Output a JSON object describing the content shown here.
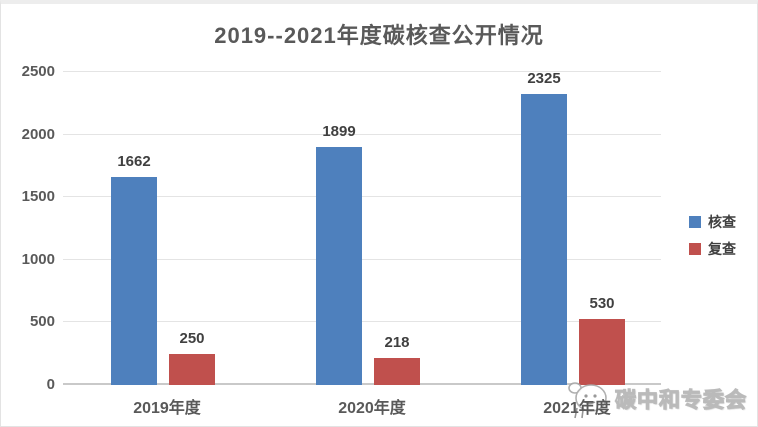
{
  "title": "2019--2021年度碳核查公开情况",
  "chart_data": {
    "type": "bar",
    "title": "2019--2021年度碳核查公开情况",
    "categories": [
      "2019年度",
      "2020年度",
      "2021年度"
    ],
    "series": [
      {
        "name": "核查",
        "color": "#4E80BD",
        "values": [
          1662,
          1899,
          2325
        ]
      },
      {
        "name": "复查",
        "color": "#C0504D",
        "values": [
          250,
          218,
          530
        ]
      }
    ],
    "xlabel": "",
    "ylabel": "",
    "ylim": [
      0,
      2500
    ],
    "yticks": [
      0,
      500,
      1000,
      1500,
      2000,
      2500
    ],
    "grid": "horizontal",
    "legend_position": "right",
    "data_labels": true
  },
  "legend": {
    "items": [
      {
        "label": "核查",
        "color": "#4E80BD"
      },
      {
        "label": "复查",
        "color": "#C0504D"
      }
    ]
  },
  "watermark": {
    "text": "碳中和专委会",
    "icon": "mascot-logo-icon"
  },
  "colors": {
    "series_verification": "#4E80BD",
    "series_review": "#C0504D",
    "title_text": "#595959",
    "label_text": "#404040",
    "gridline": "#e4e4e4",
    "axis_line": "#c9c9c9",
    "card_background": "#ffffff"
  }
}
